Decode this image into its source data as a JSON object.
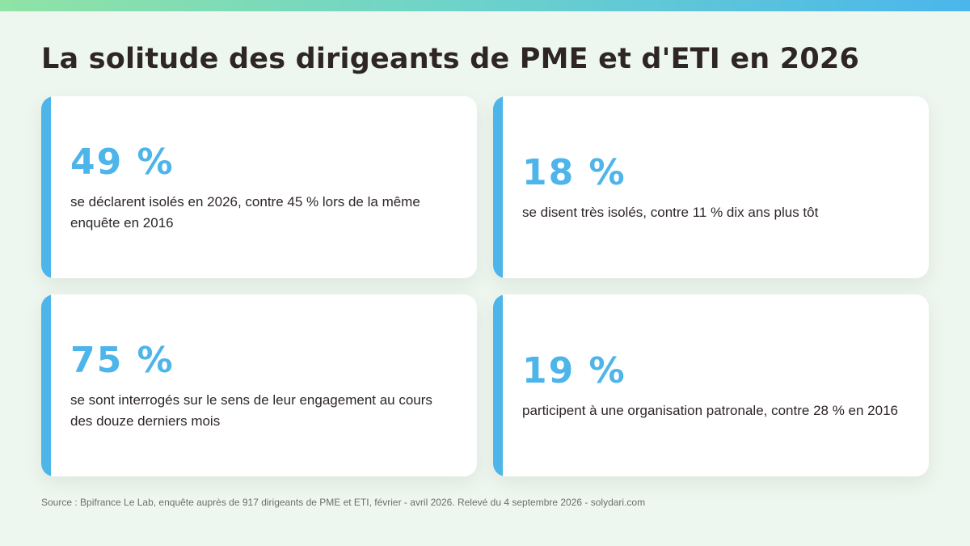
{
  "header": {
    "title": "La solitude des dirigeants de PME et d'ETI en 2026"
  },
  "colors": {
    "accent": "#4db5ea",
    "background": "#eef7ef",
    "text": "#2e2626",
    "card": "#ffffff",
    "gradient_start": "#8fe3a4",
    "gradient_end": "#4ab6ec"
  },
  "stats": [
    {
      "value": "49 %",
      "text": "se déclarent isolés en 2026, contre 45 % lors de la même enquête en 2016"
    },
    {
      "value": "18 %",
      "text": "se disent très isolés, contre 11 % dix ans plus tôt"
    },
    {
      "value": "75 %",
      "text": "se sont interrogés sur le sens de leur engagement au cours des douze derniers mois"
    },
    {
      "value": "19 %",
      "text": "participent à une organisation patronale, contre 28 % en 2016"
    }
  ],
  "footer": {
    "source": "Source : Bpifrance Le Lab, enquête auprès de 917 dirigeants de PME et ETI, février - avril 2026. Relevé du 4 septembre 2026 - solydari.com"
  }
}
